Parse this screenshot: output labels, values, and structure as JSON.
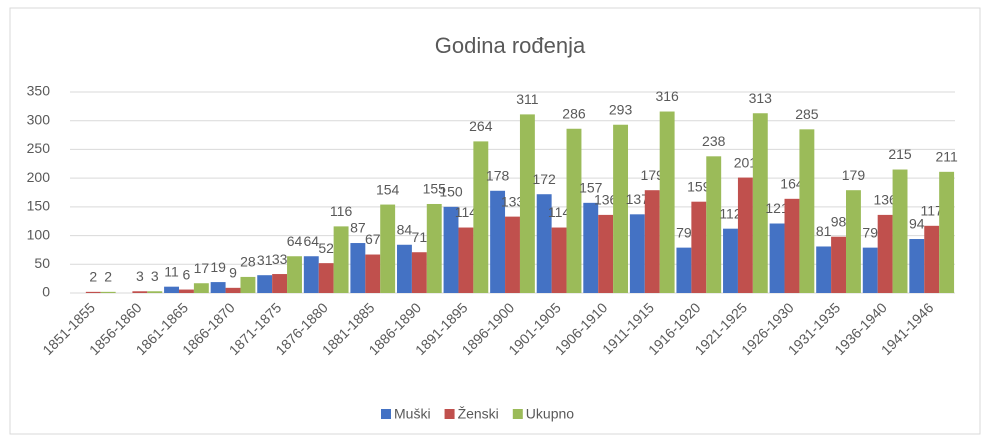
{
  "chart_data": {
    "type": "bar",
    "title": "Godina rođenja",
    "categories": [
      "1851-1855",
      "1856-1860",
      "1861-1865",
      "1866-1870",
      "1871-1875",
      "1876-1880",
      "1881-1885",
      "1886-1890",
      "1891-1895",
      "1896-1900",
      "1901-1905",
      "1906-1910",
      "1911-1915",
      "1916-1920",
      "1921-1925",
      "1926-1930",
      "1931-1935",
      "1936-1940",
      "1941-1946"
    ],
    "series": [
      {
        "name": "Muški",
        "color": "#4472c4",
        "values": [
          null,
          null,
          11,
          19,
          31,
          64,
          87,
          84,
          150,
          178,
          172,
          157,
          137,
          79,
          112,
          121,
          81,
          79,
          94
        ]
      },
      {
        "name": "Ženski",
        "color": "#c0504d",
        "values": [
          2,
          3,
          6,
          9,
          33,
          52,
          67,
          71,
          114,
          133,
          114,
          136,
          179,
          159,
          201,
          164,
          98,
          136,
          117
        ]
      },
      {
        "name": "Ukupno",
        "color": "#9bbb59",
        "values": [
          2,
          3,
          17,
          28,
          64,
          116,
          154,
          155,
          264,
          311,
          286,
          293,
          316,
          238,
          313,
          285,
          179,
          215,
          211
        ]
      }
    ],
    "ylim": [
      0,
      350
    ],
    "yticks": [
      0,
      50,
      100,
      150,
      200,
      250,
      300,
      350
    ],
    "grid": true,
    "legend": "bottom"
  }
}
